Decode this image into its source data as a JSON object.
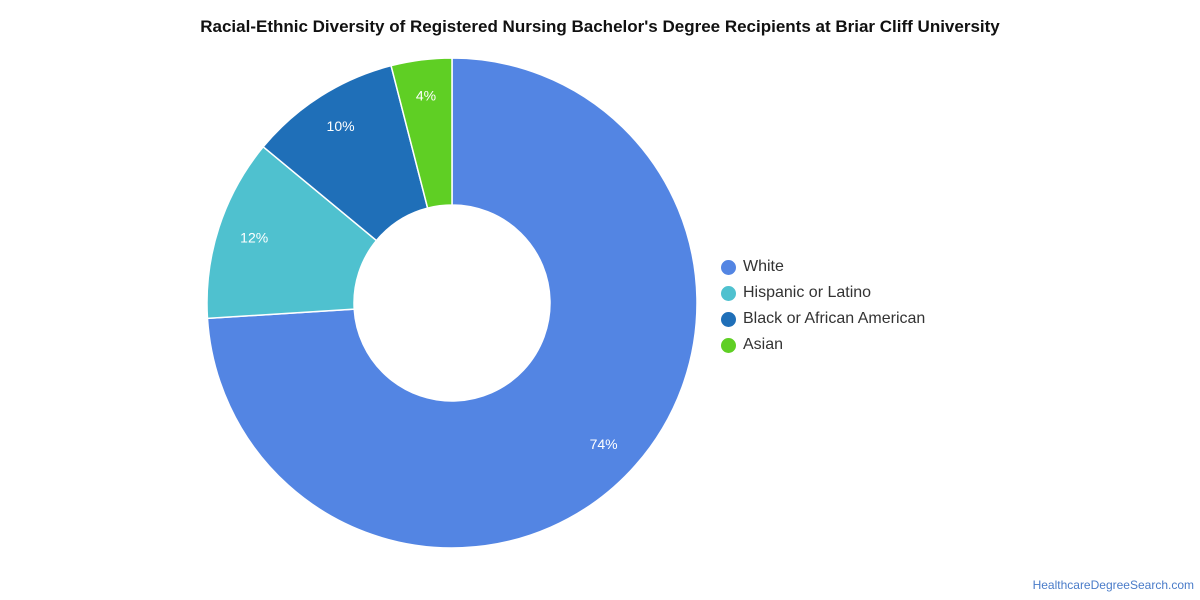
{
  "chart_data": {
    "type": "pie",
    "subtype": "donut",
    "title": "Racial-Ethnic Diversity of Registered Nursing Bachelor's Degree Recipients at Briar Cliff University",
    "slices": [
      {
        "label": "White",
        "value": 74,
        "display": "74%",
        "color": "#5385e3"
      },
      {
        "label": "Hispanic or Latino",
        "value": 12,
        "display": "12%",
        "color": "#4fc1cf"
      },
      {
        "label": "Black or African American",
        "value": 10,
        "display": "10%",
        "color": "#1f6fb8"
      },
      {
        "label": "Asian",
        "value": 4,
        "display": "4%",
        "color": "#5fcf24"
      }
    ],
    "legend_position": "right"
  },
  "footer": {
    "source": "HealthcareDegreeSearch.com"
  }
}
